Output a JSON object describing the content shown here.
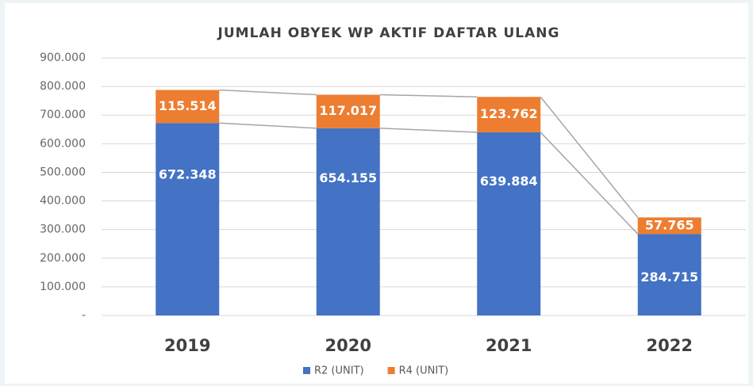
{
  "chart_data": {
    "type": "stacked_bar",
    "title": "JUMLAH OBYEK WP AKTIF DAFTAR ULANG",
    "categories": [
      "2019",
      "2020",
      "2021",
      "2022"
    ],
    "series": [
      {
        "name": "R2 (UNIT)",
        "color": "#4472c4",
        "values": [
          672348,
          654155,
          639884,
          284715
        ],
        "value_labels": [
          "672.348",
          "654.155",
          "639.884",
          "284.715"
        ]
      },
      {
        "name": "R4 (UNIT)",
        "color": "#ed7d31",
        "values": [
          115514,
          117017,
          123762,
          57765
        ],
        "value_labels": [
          "115.514",
          "117.017",
          "123.762",
          "57.765"
        ]
      }
    ],
    "ylim": [
      0,
      900000
    ],
    "yticks": [
      {
        "value": 0,
        "label": "-"
      },
      {
        "value": 100000,
        "label": "100.000"
      },
      {
        "value": 200000,
        "label": "200.000"
      },
      {
        "value": 300000,
        "label": "300.000"
      },
      {
        "value": 400000,
        "label": "400.000"
      },
      {
        "value": 500000,
        "label": "500.000"
      },
      {
        "value": 600000,
        "label": "600.000"
      },
      {
        "value": 700000,
        "label": "700.000"
      },
      {
        "value": 800000,
        "label": "800.000"
      },
      {
        "value": 900000,
        "label": "900.000"
      }
    ],
    "grid": true,
    "legend": "bottom"
  }
}
